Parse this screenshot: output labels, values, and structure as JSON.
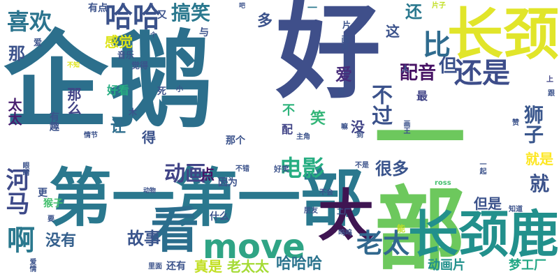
{
  "word_cloud": {
    "words": [
      {
        "text": "企鹅",
        "color": "#2c6f8c"
      },
      {
        "text": "好",
        "color": "#3f4f8a"
      },
      {
        "text": "一部",
        "color": "#6dc85d"
      },
      {
        "text": "第一第一部",
        "color": "#2a788e"
      },
      {
        "text": "长颈",
        "color": "#e1e52a"
      },
      {
        "text": "长颈鹿",
        "color": "#22908c"
      },
      {
        "text": "看",
        "color": "#2b6e8d"
      },
      {
        "text": "太",
        "color": "#3f1552"
      },
      {
        "text": "move",
        "color": "#2fa485"
      },
      {
        "text": "哈哈",
        "color": "#3b528b"
      },
      {
        "text": "比",
        "color": "#2f6b8e"
      },
      {
        "text": "还是",
        "color": "#3d4d8a"
      },
      {
        "text": "河马",
        "color": "#3e4a89"
      },
      {
        "text": "啊",
        "color": "#2a788e"
      },
      {
        "text": "老太",
        "color": "#31688e"
      },
      {
        "text": "电影",
        "color": "#26ad81"
      },
      {
        "text": "喜欢",
        "color": "#2b748e"
      },
      {
        "text": "搞笑",
        "color": "#2a788e"
      },
      {
        "text": "动画",
        "color": "#414487"
      },
      {
        "text": "不过",
        "color": "#3b528b"
      },
      {
        "text": "狮子",
        "color": "#39568c"
      },
      {
        "text": "配音",
        "color": "#471365"
      },
      {
        "text": "但",
        "color": "#3b528b"
      },
      {
        "text": "就",
        "color": "#3b528b"
      },
      {
        "text": "很多",
        "color": "#3a548c"
      },
      {
        "text": "故事",
        "color": "#3a548c"
      },
      {
        "text": "没有",
        "color": "#35608d"
      },
      {
        "text": "哈哈哈",
        "color": "#2b748e"
      },
      {
        "text": "真是",
        "color": "#c2df23"
      },
      {
        "text": "老太太",
        "color": "#a5db36"
      },
      {
        "text": "动画片",
        "color": "#21918c"
      },
      {
        "text": "梦工厂",
        "color": "#22a785"
      },
      {
        "text": "爱",
        "color": "#472d7b"
      },
      {
        "text": "那",
        "color": "#3b528b"
      },
      {
        "text": "还",
        "color": "#2a788e"
      },
      {
        "text": "笑",
        "color": "#34b679"
      },
      {
        "text": "没",
        "color": "#414487"
      },
      {
        "text": "让",
        "color": "#2e6e8e"
      },
      {
        "text": "得",
        "color": "#3b528b"
      },
      {
        "text": "点",
        "color": "#471365"
      },
      {
        "text": "就是",
        "color": "#fde725"
      },
      {
        "text": "但是",
        "color": "#3b528b"
      },
      {
        "text": "感觉",
        "color": "#dde318"
      },
      {
        "text": "那么",
        "color": "#414487"
      },
      {
        "text": "太太",
        "color": "#481f70"
      },
      {
        "text": "多",
        "color": "#3b528b"
      },
      {
        "text": "这",
        "color": "#3b528b"
      },
      {
        "text": "有趣",
        "color": "#3b528b"
      },
      {
        "text": "不",
        "color": "#2fb47c"
      },
      {
        "text": "配",
        "color": "#414487"
      },
      {
        "text": "最",
        "color": "#414487"
      },
      {
        "text": "因为",
        "color": "#3b528b"
      },
      {
        "text": "什么",
        "color": "#3b528b"
      },
      {
        "text": "猴子",
        "color": "#46c06f"
      },
      {
        "text": "好看",
        "color": "#26ad81"
      },
      {
        "text": "又",
        "color": "#3b528b"
      },
      {
        "text": "一",
        "color": "#2a788e"
      },
      {
        "text": "有点",
        "color": "#3b528b"
      },
      {
        "text": "那个",
        "color": "#3b528b"
      },
      {
        "text": "更",
        "color": "#3b528b"
      },
      {
        "text": "还有",
        "color": "#3b528b"
      },
      {
        "text": "人",
        "color": "#3b528b"
      },
      {
        "text": "与",
        "color": "#3b528b"
      },
      {
        "text": "片",
        "color": "#3b528b"
      },
      {
        "text": "画片",
        "color": "#3b528b"
      },
      {
        "text": "音乐",
        "color": "#3b528b"
      },
      {
        "text": "觉得",
        "color": "#3b528b"
      },
      {
        "text": "死",
        "color": "#3b528b"
      },
      {
        "text": "木",
        "color": "#3b528b"
      },
      {
        "text": "片子",
        "color": "#c2df23"
      },
      {
        "text": "上",
        "color": "#414487"
      },
      {
        "text": "赞",
        "color": "#3b528b"
      },
      {
        "text": "跟",
        "color": "#3b528b"
      },
      {
        "text": "一起",
        "color": "#3b528b"
      },
      {
        "text": "知道",
        "color": "#3b528b"
      },
      {
        "text": "不会",
        "color": "#3b528b"
      },
      {
        "text": "不错",
        "color": "#3b528b"
      },
      {
        "text": "不是",
        "color": "#3b528b"
      },
      {
        "text": "好笑",
        "color": "#3b528b"
      },
      {
        "text": "朋友",
        "color": "#3b528b"
      },
      {
        "text": "工厂",
        "color": "#3b528b"
      },
      {
        "text": "呜呜",
        "color": "#3b528b"
      },
      {
        "text": "能",
        "color": "#c2df23"
      },
      {
        "text": "ross",
        "color": "#46c06f"
      },
      {
        "text": "要",
        "color": "#3b528b"
      },
      {
        "text": "里面",
        "color": "#3b528b"
      },
      {
        "text": "爱情",
        "color": "#3b528b"
      },
      {
        "text": "动物",
        "color": "#3b528b"
      },
      {
        "text": "眼睛",
        "color": "#3b528b"
      },
      {
        "text": "情节",
        "color": "#3b528b"
      },
      {
        "text": "主角",
        "color": "#3b528b"
      },
      {
        "text": "到",
        "color": "#3b528b"
      },
      {
        "text": "嘛",
        "color": "#3b528b"
      },
      {
        "text": "给",
        "color": "#3b528b"
      },
      {
        "text": "小",
        "color": "#3b528b"
      },
      {
        "text": "吧",
        "color": "#3b528b"
      },
      {
        "text": "个",
        "color": "#3b528b"
      },
      {
        "text": "不知",
        "color": "#dde318"
      },
      {
        "text": "爱",
        "color": "#3b528b"
      },
      {
        "text": "画王",
        "color": "#3b528b"
      }
    ]
  }
}
